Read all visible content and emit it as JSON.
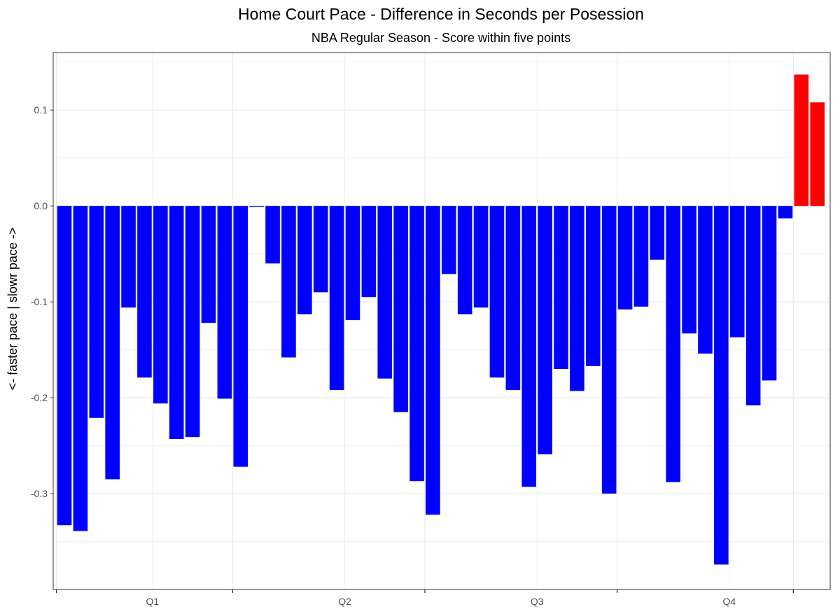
{
  "chart_data": {
    "type": "bar",
    "title": "Home Court Pace - Difference in Seconds per Posession",
    "subtitle": "NBA Regular Season - Score within five points",
    "xlabel": "",
    "ylabel": "<- faster pace | slowr pace ->",
    "ylim": [
      -0.4,
      0.16
    ],
    "y_ticks": [
      "0.1",
      "0.0",
      "-0.1",
      "-0.2",
      "-0.3"
    ],
    "y_tick_values": [
      0.1,
      0.0,
      -0.1,
      -0.2,
      -0.3
    ],
    "x_tick_labels": [
      "Q1",
      "Q2",
      "Q3",
      "Q4"
    ],
    "grid": true,
    "colors": {
      "negative": "#0000ff",
      "positive": "#ff0000",
      "grid": "#ebebeb",
      "border": "#333333"
    },
    "values": [
      -0.333,
      -0.339,
      -0.221,
      -0.285,
      -0.106,
      -0.179,
      -0.206,
      -0.243,
      -0.241,
      -0.122,
      -0.201,
      -0.272,
      -0.001,
      -0.06,
      -0.158,
      -0.113,
      -0.09,
      -0.192,
      -0.119,
      -0.095,
      -0.18,
      -0.215,
      -0.287,
      -0.322,
      -0.071,
      -0.113,
      -0.106,
      -0.179,
      -0.192,
      -0.293,
      -0.259,
      -0.17,
      -0.193,
      -0.167,
      -0.3,
      -0.108,
      -0.105,
      -0.056,
      -0.288,
      -0.133,
      -0.154,
      -0.374,
      -0.137,
      -0.208,
      -0.182,
      -0.013,
      0.137,
      0.108
    ]
  }
}
